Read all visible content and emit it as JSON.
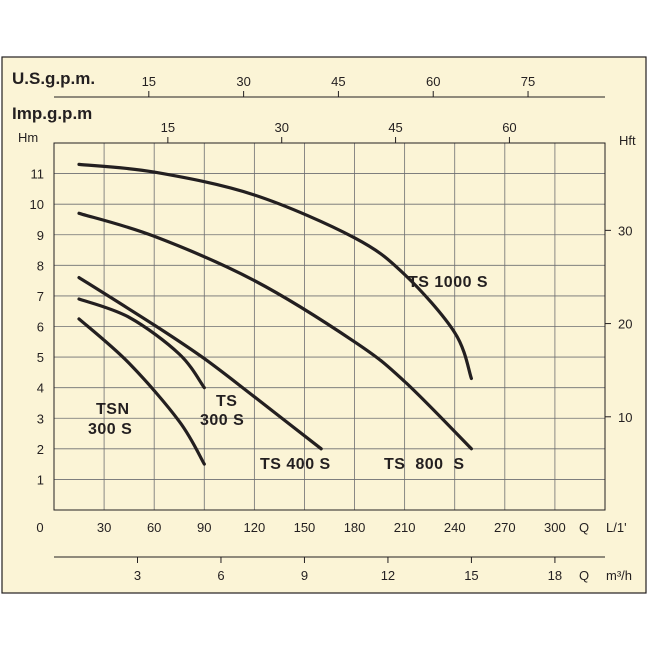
{
  "colors": {
    "background": "#fbf4d6",
    "ink": "#231f20"
  },
  "chart_data": {
    "type": "line",
    "grid": true,
    "x": {
      "label": "Q",
      "unit": "L/1'",
      "range": [
        0,
        330
      ],
      "ticks": [
        "0",
        "30",
        "60",
        "90",
        "120",
        "150",
        "180",
        "210",
        "240",
        "270",
        "300"
      ]
    },
    "x2": {
      "label": "Q",
      "unit": "m³/h",
      "range": [
        0,
        19.8
      ],
      "ticks": [
        "3",
        "6",
        "9",
        "12",
        "15",
        "18"
      ]
    },
    "x_usgpm": {
      "label": "U.S.g.p.m.",
      "ticks": [
        "15",
        "30",
        "45",
        "60",
        "75"
      ]
    },
    "x_impgpm": {
      "label": "Imp.g.p.m",
      "ticks": [
        "15",
        "30",
        "45",
        "60"
      ]
    },
    "y": {
      "label": "Hm",
      "range": [
        0,
        12
      ],
      "ticks": [
        "1",
        "2",
        "3",
        "4",
        "5",
        "6",
        "7",
        "8",
        "9",
        "10",
        "11"
      ]
    },
    "y2": {
      "label": "Hft",
      "ticks": [
        "10",
        "20",
        "30"
      ]
    },
    "series": [
      {
        "name": "TS 1000 S",
        "points": [
          [
            15,
            11.3
          ],
          [
            60,
            11.05
          ],
          [
            120,
            10.3
          ],
          [
            180,
            8.9
          ],
          [
            210,
            7.7
          ],
          [
            240,
            5.8
          ],
          [
            250,
            4.3
          ]
        ]
      },
      {
        "name": "TS 800 S",
        "points": [
          [
            15,
            9.7
          ],
          [
            60,
            8.95
          ],
          [
            120,
            7.5
          ],
          [
            180,
            5.5
          ],
          [
            210,
            4.2
          ],
          [
            250,
            2.0
          ]
        ]
      },
      {
        "name": "TS 400 S",
        "points": [
          [
            15,
            7.6
          ],
          [
            60,
            6.05
          ],
          [
            90,
            4.95
          ],
          [
            120,
            3.7
          ],
          [
            160,
            2.0
          ]
        ]
      },
      {
        "name": "TS 300 S",
        "points": [
          [
            15,
            6.9
          ],
          [
            45,
            6.3
          ],
          [
            75,
            5.1
          ],
          [
            90,
            4.0
          ]
        ]
      },
      {
        "name": "TSN 300 S",
        "points": [
          [
            15,
            6.25
          ],
          [
            45,
            4.8
          ],
          [
            75,
            2.9
          ],
          [
            90,
            1.5
          ]
        ]
      }
    ],
    "curve_labels": {
      "ts1000": "TS 1000 S",
      "ts800": "TS  800  S",
      "ts400": "TS 400 S",
      "ts300_a": "TS",
      "ts300_b": "300 S",
      "tsn300_a": "TSN",
      "tsn300_b": "300 S"
    }
  }
}
